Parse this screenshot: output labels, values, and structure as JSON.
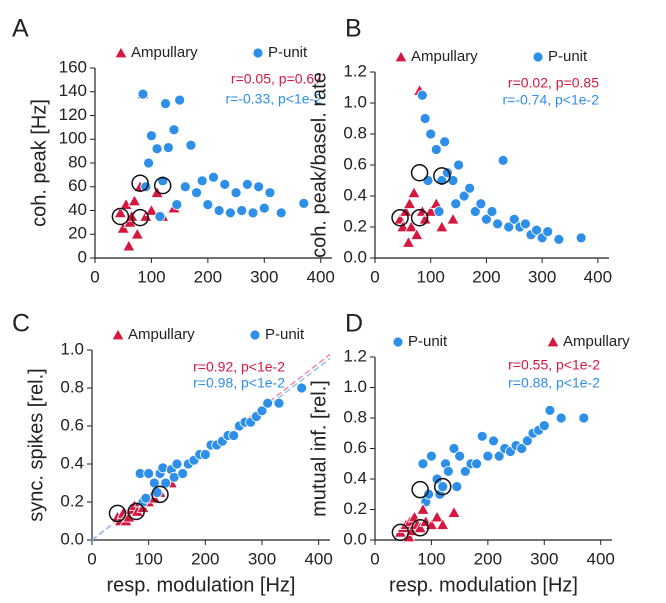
{
  "chart_data": [
    {
      "type": "scatter",
      "panel": "A",
      "ylabel": "coh. peak [Hz]",
      "xlim": [
        0,
        420
      ],
      "xticks": [
        0,
        100,
        200,
        300,
        400
      ],
      "ylim": [
        0,
        160
      ],
      "yticks": [
        0,
        20,
        40,
        60,
        80,
        100,
        120,
        140,
        160
      ],
      "series": [
        {
          "name": "Ampullary",
          "color": "#d6173f",
          "marker": "triangle",
          "x": [
            45,
            50,
            55,
            60,
            62,
            65,
            70,
            75,
            80,
            85,
            90,
            100,
            110,
            120,
            140
          ],
          "values": [
            38,
            25,
            45,
            10,
            30,
            35,
            48,
            20,
            60,
            138,
            35,
            40,
            55,
            35,
            42
          ]
        },
        {
          "name": "P-unit",
          "color": "#2e8fe8",
          "marker": "circle",
          "x": [
            85,
            90,
            95,
            100,
            110,
            115,
            120,
            125,
            130,
            140,
            145,
            150,
            160,
            170,
            180,
            190,
            200,
            210,
            220,
            230,
            240,
            250,
            260,
            270,
            280,
            290,
            300,
            310,
            330,
            370
          ],
          "values": [
            138,
            60,
            80,
            103,
            92,
            35,
            65,
            130,
            93,
            108,
            45,
            133,
            60,
            95,
            55,
            65,
            45,
            68,
            40,
            62,
            38,
            55,
            40,
            62,
            38,
            60,
            42,
            55,
            38,
            46
          ]
        }
      ],
      "highlighted": {
        "x": [
          45,
          80,
          80,
          120
        ],
        "values": [
          35,
          34,
          63,
          61
        ]
      },
      "annotations": [
        {
          "text": "r=0.05, p=0.67",
          "color": "#d6173f"
        },
        {
          "text": "r=-0.33, p<1e-2",
          "color": "#2e8fe8"
        }
      ]
    },
    {
      "type": "scatter",
      "panel": "B",
      "ylabel": "coh. peak/basel. rate",
      "xlim": [
        0,
        420
      ],
      "xticks": [
        0,
        100,
        200,
        300,
        400
      ],
      "ylim": [
        0,
        1.2
      ],
      "yticks": [
        {
          "value": 0,
          "label": "0.0"
        },
        0.2,
        0.4,
        0.6,
        0.8,
        {
          "value": 1,
          "label": "1.0"
        },
        1.2
      ],
      "series": [
        {
          "name": "Ampullary",
          "color": "#d6173f",
          "marker": "triangle",
          "x": [
            45,
            50,
            55,
            60,
            62,
            65,
            70,
            75,
            80,
            85,
            90,
            100,
            110,
            120,
            140
          ],
          "values": [
            0.25,
            0.2,
            0.3,
            0.1,
            0.35,
            0.2,
            0.42,
            0.15,
            1.08,
            0.3,
            0.25,
            0.3,
            0.35,
            0.2,
            0.25
          ]
        },
        {
          "name": "P-unit",
          "color": "#2e8fe8",
          "marker": "circle",
          "x": [
            85,
            90,
            95,
            100,
            110,
            115,
            120,
            125,
            130,
            140,
            145,
            150,
            160,
            170,
            180,
            190,
            200,
            210,
            220,
            230,
            240,
            250,
            260,
            270,
            280,
            290,
            300,
            310,
            330,
            370
          ],
          "values": [
            1.05,
            0.9,
            0.5,
            0.8,
            0.7,
            0.3,
            0.5,
            0.75,
            0.55,
            0.5,
            0.35,
            0.6,
            0.4,
            0.45,
            0.3,
            0.35,
            0.25,
            0.3,
            0.22,
            0.63,
            0.2,
            0.25,
            0.2,
            0.22,
            0.15,
            0.18,
            0.13,
            0.17,
            0.12,
            0.13
          ]
        }
      ],
      "highlighted": {
        "x": [
          45,
          80,
          80,
          120
        ],
        "values": [
          0.26,
          0.26,
          0.55,
          0.53
        ]
      },
      "annotations": [
        {
          "text": "r=0.02, p=0.85",
          "color": "#d6173f"
        },
        {
          "text": "r=-0.74, p<1e-2",
          "color": "#2e8fe8"
        }
      ]
    },
    {
      "type": "scatter",
      "panel": "C",
      "ylabel": "sync. spikes [rel.]",
      "xlabel": "resp. modulation [Hz]",
      "xlim": [
        0,
        420
      ],
      "xticks": [
        0,
        100,
        200,
        300,
        400
      ],
      "ylim": [
        0,
        1
      ],
      "yticks": [
        {
          "value": 0,
          "label": "0.0"
        },
        0.2,
        0.4,
        0.6,
        0.8,
        {
          "value": 1,
          "label": "1.0"
        }
      ],
      "series": [
        {
          "name": "Ampullary",
          "color": "#d6173f",
          "marker": "triangle",
          "x": [
            45,
            50,
            55,
            60,
            62,
            65,
            70,
            75,
            80,
            85,
            90,
            100,
            110,
            120,
            140
          ],
          "values": [
            0.12,
            0.1,
            0.14,
            0.1,
            0.13,
            0.12,
            0.16,
            0.18,
            0.15,
            0.2,
            0.17,
            0.2,
            0.22,
            0.25,
            0.3
          ]
        },
        {
          "name": "P-unit",
          "color": "#2e8fe8",
          "marker": "circle",
          "x": [
            85,
            90,
            95,
            100,
            110,
            115,
            120,
            125,
            130,
            140,
            145,
            150,
            160,
            170,
            180,
            190,
            200,
            210,
            220,
            230,
            240,
            250,
            260,
            270,
            280,
            290,
            300,
            310,
            330,
            370
          ],
          "values": [
            0.35,
            0.2,
            0.22,
            0.35,
            0.3,
            0.25,
            0.35,
            0.38,
            0.3,
            0.37,
            0.33,
            0.4,
            0.35,
            0.4,
            0.42,
            0.45,
            0.45,
            0.5,
            0.5,
            0.52,
            0.55,
            0.55,
            0.6,
            0.62,
            0.62,
            0.65,
            0.68,
            0.72,
            0.72,
            0.8
          ]
        }
      ],
      "fit_lines": [
        {
          "color": "#f08a9c",
          "x": [
            0,
            420
          ],
          "values": [
            0,
            0.977
          ]
        },
        {
          "color": "#8cc1f2",
          "x": [
            0,
            420
          ],
          "values": [
            0,
            0.955
          ]
        }
      ],
      "highlighted": {
        "x": [
          45,
          78,
          120
        ],
        "values": [
          0.14,
          0.15,
          0.24
        ]
      },
      "annotations": [
        {
          "text": "r=0.92, p<1e-2",
          "color": "#d6173f"
        },
        {
          "text": "r=0.98, p<1e-2",
          "color": "#2e8fe8"
        }
      ]
    },
    {
      "type": "scatter",
      "panel": "D",
      "ylabel": "mutual inf. [rel.]",
      "xlabel": "resp. modulation [Hz]",
      "xlim": [
        0,
        420
      ],
      "xticks": [
        0,
        100,
        200,
        300,
        400
      ],
      "ylim": [
        0,
        1.2
      ],
      "yticks": [
        {
          "value": 0,
          "label": "0.0"
        },
        0.2,
        0.4,
        0.6,
        0.8,
        {
          "value": 1,
          "label": "1.0"
        },
        1.2
      ],
      "series": [
        {
          "name": "P-unit",
          "color": "#2e8fe8",
          "marker": "circle",
          "x": [
            85,
            90,
            95,
            100,
            110,
            115,
            120,
            125,
            130,
            140,
            145,
            150,
            160,
            170,
            180,
            190,
            200,
            210,
            220,
            230,
            240,
            250,
            260,
            270,
            280,
            290,
            300,
            310,
            330,
            370
          ],
          "values": [
            0.5,
            0.25,
            0.3,
            0.55,
            0.4,
            0.3,
            0.35,
            0.5,
            0.45,
            0.6,
            0.35,
            0.55,
            0.45,
            0.5,
            0.5,
            0.68,
            0.55,
            0.65,
            0.55,
            0.6,
            0.58,
            0.62,
            0.6,
            0.65,
            0.7,
            0.72,
            0.75,
            0.85,
            0.8,
            0.8
          ]
        },
        {
          "name": "Ampullary",
          "color": "#d6173f",
          "marker": "triangle",
          "x": [
            45,
            50,
            55,
            60,
            62,
            65,
            70,
            75,
            80,
            85,
            90,
            100,
            110,
            120,
            140
          ],
          "values": [
            0.05,
            0.08,
            0.1,
            0.02,
            0.12,
            0.06,
            0.15,
            0.1,
            0.08,
            0.2,
            0.12,
            0.1,
            0.15,
            0.1,
            0.18
          ]
        }
      ],
      "highlighted": {
        "x": [
          45,
          80,
          80,
          120
        ],
        "values": [
          0.05,
          0.08,
          0.33,
          0.35
        ]
      },
      "annotations": [
        {
          "text": "r=0.55, p<1e-2",
          "color": "#d6173f"
        },
        {
          "text": "r=0.88, p<1e-2",
          "color": "#2e8fe8"
        }
      ]
    }
  ]
}
